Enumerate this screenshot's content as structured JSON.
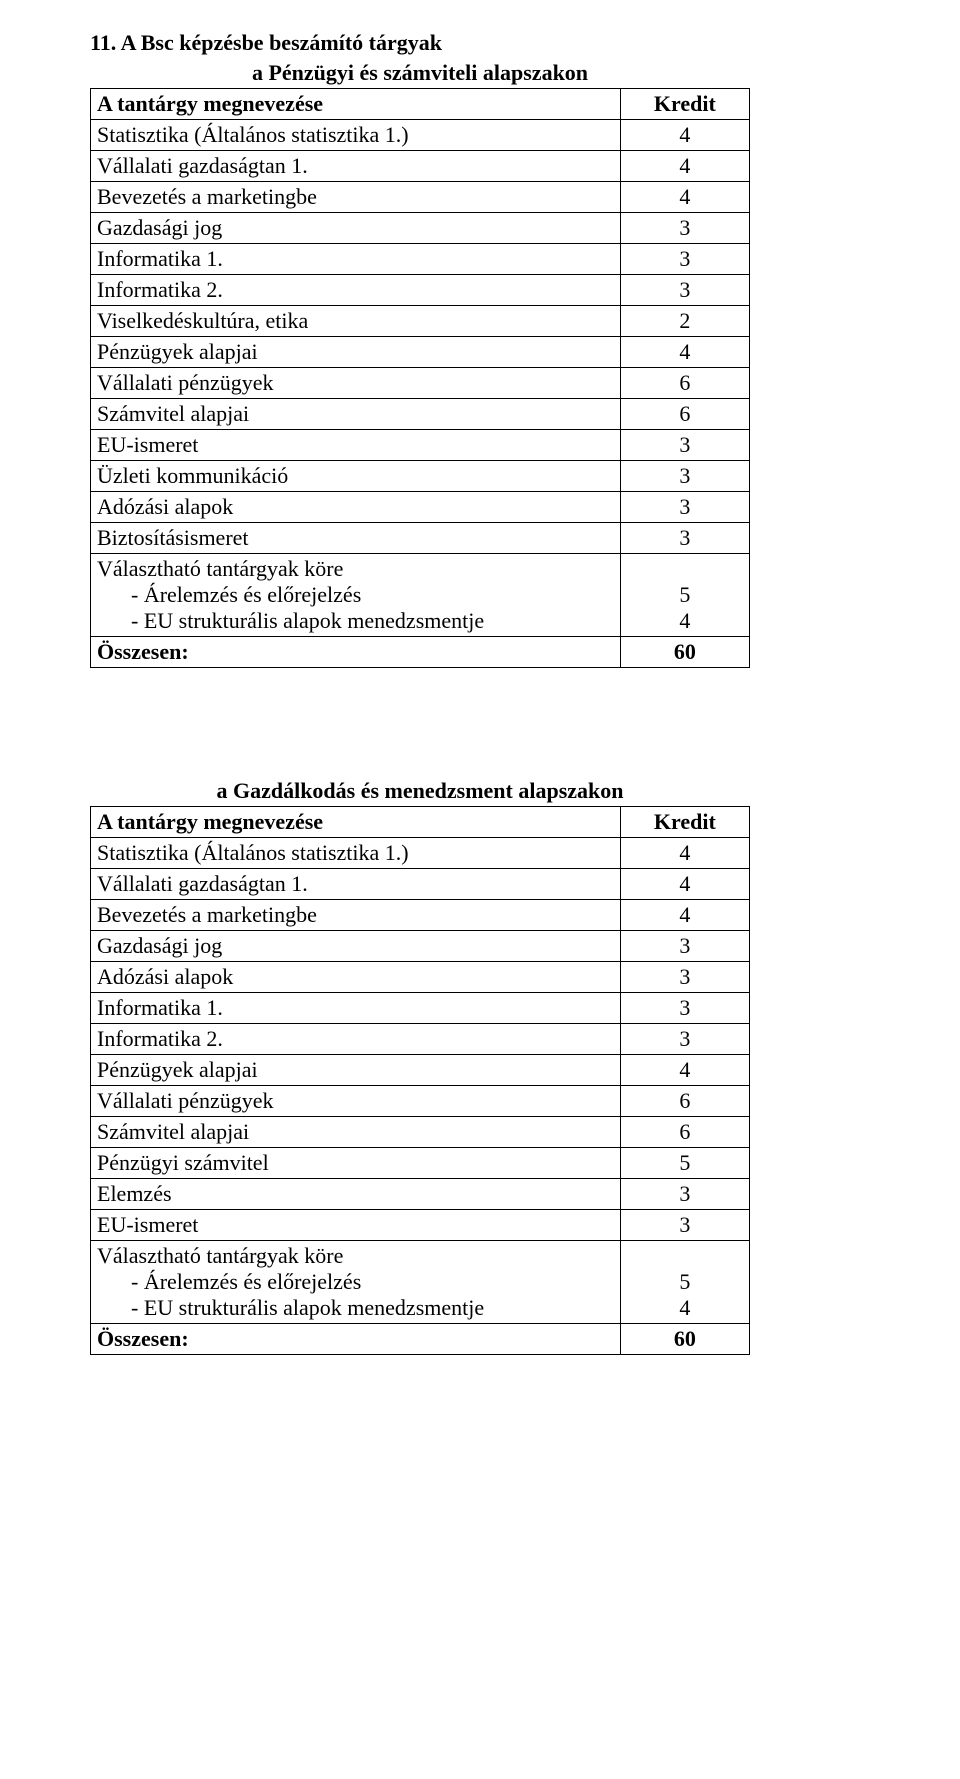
{
  "section_heading": "11. A Bsc képzésbe beszámító tárgyak",
  "table1": {
    "title": "a Pénzügyi és számviteli alapszakon",
    "header_name": "A tantárgy megnevezése",
    "header_credit": "Kredit",
    "rows": [
      {
        "name": "Statisztika (Általános statisztika 1.)",
        "credit": "4"
      },
      {
        "name": "Vállalati gazdaságtan 1.",
        "credit": "4"
      },
      {
        "name": "Bevezetés a marketingbe",
        "credit": "4"
      },
      {
        "name": "Gazdasági jog",
        "credit": "3"
      },
      {
        "name": "Informatika 1.",
        "credit": "3"
      },
      {
        "name": "Informatika 2.",
        "credit": "3"
      },
      {
        "name": "Viselkedéskultúra, etika",
        "credit": "2"
      },
      {
        "name": "Pénzügyek alapjai",
        "credit": "4"
      },
      {
        "name": "Vállalati pénzügyek",
        "credit": "6"
      },
      {
        "name": "Számvitel alapjai",
        "credit": "6"
      },
      {
        "name": "EU-ismeret",
        "credit": "3"
      },
      {
        "name": "Üzleti kommunikáció",
        "credit": "3"
      },
      {
        "name": "Adózási alapok",
        "credit": "3"
      },
      {
        "name": "Biztosításismeret",
        "credit": "3"
      }
    ],
    "elective_label": "Választható tantárgyak köre",
    "elective_items": [
      {
        "bullet": "-",
        "name": "Árelemzés és előrejelzés",
        "credit": "5"
      },
      {
        "bullet": "-",
        "name": "EU strukturális alapok menedzsmentje",
        "credit": "4"
      }
    ],
    "sum_label": "Összesen:",
    "sum_value": "60"
  },
  "table2": {
    "title": "a Gazdálkodás és menedzsment  alapszakon",
    "header_name": "A tantárgy megnevezése",
    "header_credit": "Kredit",
    "rows": [
      {
        "name": "Statisztika (Általános statisztika 1.)",
        "credit": "4"
      },
      {
        "name": "Vállalati gazdaságtan 1.",
        "credit": "4"
      },
      {
        "name": "Bevezetés a marketingbe",
        "credit": "4"
      },
      {
        "name": "Gazdasági jog",
        "credit": "3"
      },
      {
        "name": "Adózási alapok",
        "credit": "3"
      },
      {
        "name": "Informatika 1.",
        "credit": "3"
      },
      {
        "name": "Informatika 2.",
        "credit": "3"
      },
      {
        "name": "Pénzügyek alapjai",
        "credit": "4"
      },
      {
        "name": "Vállalati pénzügyek",
        "credit": "6"
      },
      {
        "name": "Számvitel alapjai",
        "credit": "6"
      },
      {
        "name": "Pénzügyi számvitel",
        "credit": "5"
      },
      {
        "name": "Elemzés",
        "credit": "3"
      },
      {
        "name": "EU-ismeret",
        "credit": "3"
      }
    ],
    "elective_label": "Választható tantárgyak köre",
    "elective_items": [
      {
        "bullet": "-",
        "name": "Árelemzés és előrejelzés",
        "credit": "5"
      },
      {
        "bullet": "-",
        "name": "EU strukturális alapok menedzsmentje",
        "credit": "4"
      }
    ],
    "sum_label": "Összesen:",
    "sum_value": "60"
  }
}
